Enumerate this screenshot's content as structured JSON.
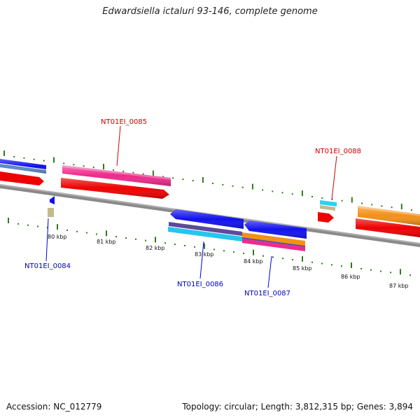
{
  "title": "Edwardsiella ictaluri 93-146, complete genome",
  "footer": {
    "accession": "Accession: NC_012779",
    "summary": "Topology: circular; Length: 3,812,315 bp; Genes: 3,894"
  },
  "scale_labels": [
    "80 kbp",
    "81 kbp",
    "82 kbp",
    "83 kbp",
    "84 kbp",
    "85 kbp",
    "86 kbp",
    "87 kbp"
  ],
  "gene_labels": [
    {
      "text": "NT01EI_0084",
      "color": "#0000cc"
    },
    {
      "text": "NT01EI_0085",
      "color": "#cc0000"
    },
    {
      "text": "NT01EI_0086",
      "color": "#0000cc"
    },
    {
      "text": "NT01EI_0087",
      "color": "#0000cc"
    },
    {
      "text": "NT01EI_0088",
      "color": "#cc0000"
    }
  ],
  "colors": {
    "backbone": "#888888",
    "tick": "#2f7a1f",
    "red": "#ee0000",
    "pink": "#ee2a8c",
    "blue": "#1111ee",
    "steel": "#5b87c9",
    "cyan": "#27c4ee",
    "purple": "#5c4a9a",
    "orange": "#f39018",
    "tan": "#c3b98b"
  }
}
